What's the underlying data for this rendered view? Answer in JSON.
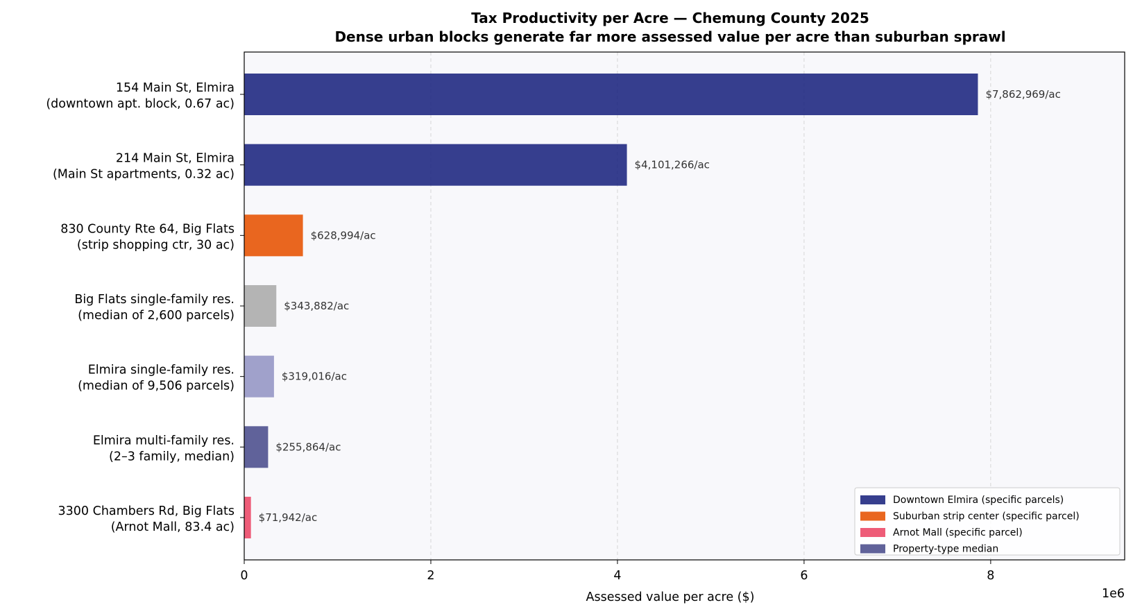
{
  "chart_data": {
    "type": "bar",
    "orientation": "horizontal",
    "title": "Tax Productivity per Acre — Chemung County 2025",
    "subtitle": "Dense urban blocks generate far more assessed value per acre than suburban sprawl",
    "xlabel": "Assessed value per acre ($)",
    "x_offset_label": "1e6",
    "xlim": [
      0,
      9436000
    ],
    "xticks": [
      0,
      2000000,
      4000000,
      6000000,
      8000000
    ],
    "xtick_labels": [
      "0",
      "2",
      "4",
      "6",
      "8"
    ],
    "grid": "x-dashed",
    "legend_position": "bottom-right",
    "bars": [
      {
        "label_line1": "154 Main St, Elmira",
        "label_line2": "(downtown apt. block, 0.67 ac)",
        "value": 7862969,
        "value_label": "$7,862,969/ac",
        "color": "#1a237e",
        "group": "downtown"
      },
      {
        "label_line1": "214 Main St, Elmira",
        "label_line2": "(Main St apartments, 0.32 ac)",
        "value": 4101266,
        "value_label": "$4,101,266/ac",
        "color": "#1a237e",
        "group": "downtown"
      },
      {
        "label_line1": "830 County Rte 64, Big Flats",
        "label_line2": "(strip shopping ctr, 30 ac)",
        "value": 628994,
        "value_label": "$628,994/ac",
        "color": "#e65100",
        "group": "strip"
      },
      {
        "label_line1": "Big Flats single-family res.",
        "label_line2": "(median of 2,600 parcels)",
        "value": 343882,
        "value_label": "$343,882/ac",
        "color": "#aaaaaa",
        "group": "median"
      },
      {
        "label_line1": "Elmira single-family res.",
        "label_line2": "(median of 9,506 parcels)",
        "value": 319016,
        "value_label": "$319,016/ac",
        "color": "#9394c4",
        "group": "median"
      },
      {
        "label_line1": "Elmira multi-family res.",
        "label_line2": "(2–3 family, median)",
        "value": 255864,
        "value_label": "$255,864/ac",
        "color": "#4a4c8c",
        "group": "median"
      },
      {
        "label_line1": "3300 Chambers Rd, Big Flats",
        "label_line2": "(Arnot Mall, 83.4 ac)",
        "value": 71942,
        "value_label": "$71,942/ac",
        "color": "#ec4565",
        "group": "mall"
      }
    ],
    "legend": [
      {
        "label": "Downtown Elmira (specific parcels)",
        "color": "#1a237e"
      },
      {
        "label": "Suburban strip center (specific parcel)",
        "color": "#e65100"
      },
      {
        "label": "Arnot Mall (specific parcel)",
        "color": "#ec4565"
      },
      {
        "label": "Property-type median",
        "color": "#4a4c8c"
      }
    ]
  }
}
